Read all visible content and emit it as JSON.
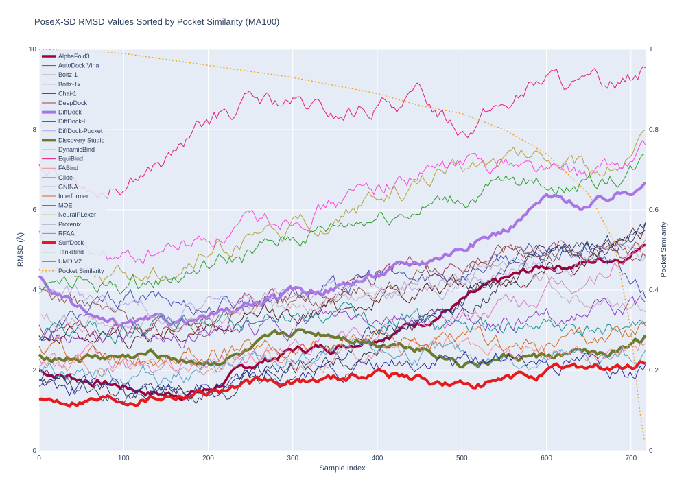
{
  "chart_data": {
    "type": "line",
    "title": "PoseX-SD RMSD Values Sorted by Pocket Similarity (MA100)",
    "xlabel": "Sample Index",
    "ylabel": "RMSD (Å)",
    "y2label": "Pocket Similarity",
    "xlim": [
      0,
      718
    ],
    "ylim": [
      0,
      10
    ],
    "y2lim": [
      0,
      1
    ],
    "xticks": [
      0,
      100,
      200,
      300,
      400,
      500,
      600,
      700
    ],
    "yticks": [
      0,
      2,
      4,
      6,
      8,
      10
    ],
    "y2ticks": [
      0,
      0.2,
      0.4,
      0.6,
      0.8,
      1
    ],
    "grid": true,
    "legend_position": "top-left",
    "plot_background": "#e5ecf6",
    "series": [
      {
        "name": "AlphaFold3",
        "color": "#a0003c",
        "width": 3.5,
        "axis": "y",
        "x": [
          0,
          50,
          100,
          150,
          200,
          250,
          300,
          350,
          400,
          450,
          500,
          550,
          600,
          650,
          700,
          718
        ],
        "y": [
          2.0,
          1.8,
          1.6,
          1.4,
          1.5,
          2.1,
          2.5,
          2.6,
          2.9,
          3.2,
          3.7,
          4.2,
          4.6,
          4.7,
          4.9,
          5.3
        ]
      },
      {
        "name": "AutoDock Vina",
        "color": "#3f51b5",
        "width": 1,
        "axis": "y",
        "x": [
          0,
          50,
          100,
          150,
          200,
          250,
          300,
          350,
          400,
          450,
          500,
          550,
          600,
          650,
          700,
          718
        ],
        "y": [
          2.8,
          3.4,
          3.8,
          3.7,
          3.6,
          3.8,
          4.1,
          4.0,
          4.4,
          4.2,
          4.5,
          4.8,
          4.9,
          5.0,
          4.3,
          3.8
        ]
      },
      {
        "name": "Boltz-1",
        "color": "#8c564b",
        "width": 1,
        "axis": "y",
        "x": [
          0,
          50,
          100,
          150,
          200,
          250,
          300,
          350,
          400,
          450,
          500,
          550,
          600,
          650,
          700,
          718
        ],
        "y": [
          3.9,
          3.7,
          3.3,
          3.1,
          3.3,
          3.6,
          3.8,
          3.9,
          4.1,
          4.2,
          4.4,
          4.7,
          5.0,
          4.8,
          5.0,
          5.2
        ]
      },
      {
        "name": "Boltz-1x",
        "color": "#e377c2",
        "width": 1,
        "axis": "y",
        "x": [
          0,
          50,
          100,
          150,
          200,
          250,
          300,
          350,
          400,
          450,
          500,
          550,
          600,
          650,
          700,
          718
        ],
        "y": [
          2.4,
          2.2,
          2.1,
          2.0,
          2.2,
          2.4,
          2.6,
          2.7,
          2.9,
          3.1,
          3.3,
          3.6,
          3.9,
          4.2,
          4.9,
          5.2
        ]
      },
      {
        "name": "Chai-1",
        "color": "#283c78",
        "width": 1,
        "axis": "y",
        "x": [
          0,
          50,
          100,
          150,
          200,
          250,
          300,
          350,
          400,
          450,
          500,
          550,
          600,
          650,
          700,
          718
        ],
        "y": [
          1.8,
          1.6,
          1.5,
          1.5,
          1.6,
          1.9,
          2.2,
          2.5,
          2.9,
          3.3,
          3.8,
          4.3,
          4.9,
          5.0,
          5.3,
          5.7
        ]
      },
      {
        "name": "DeepDock",
        "color": "#9b3b5a",
        "width": 1,
        "axis": "y",
        "x": [
          0,
          50,
          100,
          150,
          200,
          250,
          300,
          350,
          400,
          450,
          500,
          550,
          600,
          650,
          700,
          718
        ],
        "y": [
          3.1,
          2.9,
          3.0,
          3.2,
          3.4,
          3.6,
          3.8,
          4.0,
          4.3,
          4.5,
          4.8,
          5.0,
          5.2,
          5.0,
          4.9,
          5.1
        ]
      },
      {
        "name": "DiffDock",
        "color": "#a974e6",
        "width": 4,
        "axis": "y",
        "x": [
          0,
          20,
          40,
          80,
          100,
          150,
          200,
          250,
          300,
          350,
          400,
          450,
          500,
          550,
          600,
          650,
          700,
          718
        ],
        "y": [
          4.3,
          3.9,
          3.6,
          3.1,
          3.1,
          3.2,
          3.3,
          3.6,
          3.9,
          4.1,
          4.4,
          4.7,
          5.1,
          5.5,
          6.3,
          6.1,
          6.5,
          6.9
        ]
      },
      {
        "name": "DiffDock-L",
        "color": "#5a1f1f",
        "width": 1,
        "axis": "y",
        "x": [
          0,
          50,
          100,
          150,
          200,
          250,
          300,
          350,
          400,
          450,
          500,
          550,
          600,
          650,
          700,
          718
        ],
        "y": [
          3.0,
          2.9,
          2.8,
          2.9,
          3.0,
          3.2,
          3.4,
          3.6,
          3.8,
          4.0,
          4.1,
          4.3,
          4.6,
          4.8,
          5.2,
          5.5
        ]
      },
      {
        "name": "DiffDock-Pocket",
        "color": "#b7a6e0",
        "width": 1,
        "axis": "y",
        "x": [
          0,
          50,
          100,
          150,
          200,
          250,
          300,
          350,
          400,
          450,
          500,
          550,
          600,
          650,
          700,
          718
        ],
        "y": [
          4.0,
          3.8,
          3.6,
          3.5,
          3.6,
          3.7,
          3.9,
          4.0,
          4.1,
          4.2,
          4.3,
          4.5,
          4.7,
          4.9,
          5.0,
          5.0
        ]
      },
      {
        "name": "Discovery Studio",
        "color": "#6b7a2e",
        "width": 4,
        "axis": "y",
        "x": [
          0,
          50,
          100,
          150,
          200,
          250,
          300,
          350,
          400,
          450,
          500,
          550,
          600,
          650,
          700,
          718
        ],
        "y": [
          2.4,
          2.3,
          2.3,
          2.4,
          2.2,
          2.4,
          2.9,
          2.9,
          2.7,
          2.6,
          2.2,
          2.3,
          2.3,
          2.4,
          2.6,
          2.8
        ]
      },
      {
        "name": "DynamicBind",
        "color": "#c7a7c4",
        "width": 1,
        "axis": "y",
        "x": [
          0,
          50,
          100,
          150,
          200,
          250,
          300,
          350,
          400,
          450,
          500,
          550,
          600,
          650,
          700,
          718
        ],
        "y": [
          3.3,
          3.2,
          3.2,
          3.3,
          3.4,
          3.5,
          3.6,
          3.8,
          4.0,
          4.2,
          4.4,
          4.6,
          4.3,
          3.6,
          3.7,
          3.8
        ]
      },
      {
        "name": "EquiBind",
        "color": "#e6197e",
        "width": 1,
        "axis": "y",
        "x": [
          0,
          30,
          60,
          80,
          100,
          150,
          200,
          250,
          300,
          350,
          400,
          450,
          500,
          550,
          600,
          650,
          700,
          718
        ],
        "y": [
          7.0,
          6.9,
          6.7,
          6.6,
          6.8,
          7.2,
          8.1,
          8.7,
          8.6,
          8.3,
          8.6,
          8.8,
          8.1,
          8.6,
          9.3,
          9.0,
          9.3,
          9.5
        ]
      },
      {
        "name": "FABind",
        "color": "#f08c8c",
        "width": 1,
        "axis": "y",
        "x": [
          0,
          50,
          100,
          150,
          200,
          250,
          300,
          350,
          400,
          450,
          500,
          550,
          600,
          650,
          700,
          718
        ],
        "y": [
          2.2,
          2.1,
          2.0,
          2.0,
          2.1,
          2.2,
          2.3,
          2.4,
          2.5,
          2.6,
          2.6,
          2.6,
          2.5,
          2.5,
          2.6,
          2.7
        ]
      },
      {
        "name": "Glide",
        "color": "#5aa0c8",
        "width": 1,
        "axis": "y",
        "x": [
          0,
          50,
          100,
          150,
          200,
          250,
          300,
          350,
          400,
          450,
          500,
          550,
          600,
          650,
          700,
          718
        ],
        "y": [
          2.1,
          2.0,
          1.9,
          1.9,
          2.0,
          2.1,
          2.2,
          2.3,
          2.4,
          2.4,
          2.3,
          2.3,
          2.3,
          2.2,
          2.3,
          2.4
        ]
      },
      {
        "name": "GNINA",
        "color": "#2c2c9c",
        "width": 1,
        "axis": "y",
        "x": [
          0,
          50,
          100,
          150,
          200,
          250,
          300,
          350,
          400,
          450,
          500,
          550,
          600,
          650,
          700,
          718
        ],
        "y": [
          1.7,
          1.6,
          1.5,
          1.5,
          1.6,
          1.7,
          1.8,
          1.9,
          2.0,
          2.1,
          2.2,
          2.3,
          2.3,
          2.2,
          2.1,
          2.0
        ]
      },
      {
        "name": "Interformer",
        "color": "#d2691e",
        "width": 1,
        "axis": "y",
        "x": [
          0,
          50,
          100,
          150,
          200,
          250,
          300,
          350,
          400,
          450,
          500,
          550,
          600,
          650,
          700,
          718
        ],
        "y": [
          2.5,
          2.4,
          2.3,
          2.3,
          2.4,
          2.5,
          2.6,
          2.7,
          2.8,
          2.8,
          2.7,
          2.6,
          2.7,
          2.8,
          2.9,
          3.0
        ]
      },
      {
        "name": "MOE",
        "color": "#8e3fc4",
        "width": 1,
        "axis": "y",
        "x": [
          0,
          50,
          100,
          150,
          200,
          250,
          300,
          350,
          400,
          450,
          500,
          550,
          600,
          650,
          700,
          718
        ],
        "y": [
          2.9,
          2.8,
          2.8,
          2.9,
          2.9,
          3.0,
          3.1,
          3.2,
          3.3,
          3.3,
          3.2,
          3.2,
          3.3,
          3.4,
          3.5,
          3.6
        ]
      },
      {
        "name": "NeuralPLexer",
        "color": "#b5a03a",
        "width": 1,
        "axis": "y",
        "x": [
          0,
          50,
          100,
          150,
          200,
          250,
          300,
          350,
          400,
          450,
          500,
          550,
          600,
          650,
          700,
          718
        ],
        "y": [
          4.6,
          4.5,
          4.4,
          4.6,
          4.9,
          5.2,
          5.5,
          5.8,
          6.2,
          6.7,
          7.0,
          7.3,
          7.4,
          7.0,
          7.3,
          7.7
        ]
      },
      {
        "name": "Protenix",
        "color": "#3a3a55",
        "width": 1,
        "axis": "y",
        "x": [
          0,
          50,
          100,
          150,
          200,
          250,
          300,
          350,
          400,
          450,
          500,
          550,
          600,
          650,
          700,
          718
        ],
        "y": [
          1.6,
          1.5,
          1.4,
          1.3,
          1.4,
          1.7,
          2.0,
          2.3,
          2.7,
          3.1,
          3.6,
          4.1,
          4.6,
          4.8,
          5.2,
          5.5
        ]
      },
      {
        "name": "RFAA",
        "color": "#ff44dd",
        "width": 1,
        "axis": "y",
        "x": [
          0,
          50,
          100,
          150,
          200,
          250,
          300,
          350,
          400,
          450,
          500,
          550,
          600,
          650,
          700,
          718
        ],
        "y": [
          5.4,
          4.9,
          4.7,
          5.0,
          5.3,
          5.6,
          5.9,
          6.2,
          6.6,
          6.9,
          7.1,
          7.3,
          7.0,
          6.8,
          7.2,
          7.6
        ]
      },
      {
        "name": "SurfDock",
        "color": "#e41a1c",
        "width": 4,
        "axis": "y",
        "x": [
          0,
          50,
          100,
          150,
          200,
          250,
          300,
          350,
          400,
          450,
          500,
          550,
          600,
          650,
          700,
          718
        ],
        "y": [
          1.2,
          1.3,
          1.3,
          1.4,
          1.5,
          1.6,
          1.7,
          1.8,
          2.0,
          1.8,
          1.6,
          1.7,
          1.9,
          2.1,
          2.0,
          2.2
        ]
      },
      {
        "name": "TankBind",
        "color": "#2ca02c",
        "width": 1,
        "axis": "y",
        "x": [
          0,
          50,
          100,
          150,
          200,
          250,
          300,
          350,
          400,
          450,
          500,
          550,
          600,
          650,
          700,
          718
        ],
        "y": [
          4.2,
          4.1,
          4.1,
          4.3,
          4.6,
          4.9,
          5.3,
          5.6,
          5.9,
          6.1,
          6.3,
          6.6,
          6.7,
          6.6,
          7.0,
          7.3
        ]
      },
      {
        "name": "UMD V2",
        "color": "#1a8f8f",
        "width": 1,
        "axis": "y",
        "x": [
          0,
          50,
          100,
          150,
          200,
          250,
          300,
          350,
          400,
          450,
          500,
          550,
          600,
          650,
          700,
          718
        ],
        "y": [
          2.8,
          2.9,
          3.0,
          3.1,
          3.2,
          3.3,
          3.4,
          3.4,
          3.3,
          3.2,
          3.1,
          3.0,
          3.0,
          2.9,
          3.0,
          3.1
        ]
      },
      {
        "name": "Pocket Similarity",
        "color": "#f4a21d",
        "width": 1.5,
        "dash": "2,3",
        "axis": "y2",
        "x": [
          0,
          100,
          200,
          300,
          400,
          450,
          500,
          550,
          600,
          650,
          680,
          700,
          710,
          718
        ],
        "y": [
          1.0,
          0.99,
          0.96,
          0.93,
          0.89,
          0.86,
          0.84,
          0.8,
          0.74,
          0.64,
          0.52,
          0.3,
          0.1,
          0.0
        ]
      }
    ]
  }
}
